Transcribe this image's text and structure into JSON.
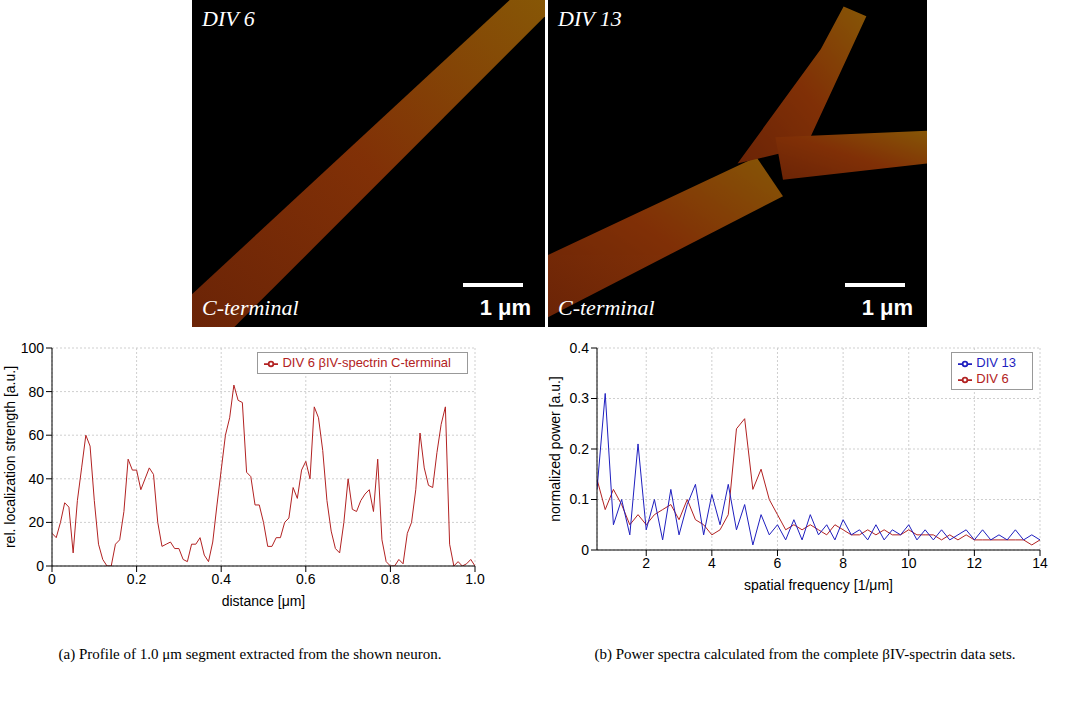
{
  "panels": [
    {
      "title": "DIV 6",
      "label": "C-terminal",
      "scale_bar": "1 μm"
    },
    {
      "title": "DIV 13",
      "label": "C-terminal",
      "scale_bar": "1 μm"
    }
  ],
  "chart_data": [
    {
      "type": "line",
      "caption": "(a) Profile of 1.0 μm segment extracted from the shown neuron.",
      "x_label": "distance [μm]",
      "y_label": "rel. localization strength [a.u.]",
      "xlim": [
        0,
        1
      ],
      "xticks": [
        0,
        0.2,
        0.4,
        0.6,
        0.8,
        {
          "value": 1,
          "label": "1.0"
        }
      ],
      "ylim": [
        0,
        100
      ],
      "yticks": [
        0,
        20,
        40,
        60,
        80,
        100
      ],
      "grid": true,
      "legend": "upper right",
      "x": [
        0,
        0.01,
        0.02,
        0.03,
        0.04,
        0.05,
        0.06,
        0.07,
        0.08,
        0.09,
        0.1,
        0.11,
        0.12,
        0.13,
        0.14,
        0.15,
        0.16,
        0.17,
        0.18,
        0.19,
        0.2,
        0.21,
        0.22,
        0.23,
        0.24,
        0.25,
        0.26,
        0.27,
        0.28,
        0.29,
        0.3,
        0.31,
        0.32,
        0.33,
        0.34,
        0.35,
        0.36,
        0.37,
        0.38,
        0.39,
        0.4,
        0.41,
        0.42,
        0.43,
        0.44,
        0.45,
        0.46,
        0.47,
        0.48,
        0.49,
        0.5,
        0.51,
        0.52,
        0.53,
        0.54,
        0.55,
        0.56,
        0.57,
        0.58,
        0.59,
        0.6,
        0.61,
        0.62,
        0.63,
        0.64,
        0.65,
        0.66,
        0.67,
        0.68,
        0.69,
        0.7,
        0.71,
        0.72,
        0.73,
        0.74,
        0.75,
        0.76,
        0.77,
        0.78,
        0.79,
        0.8,
        0.81,
        0.82,
        0.83,
        0.84,
        0.85,
        0.86,
        0.87,
        0.88,
        0.89,
        0.9,
        0.91,
        0.92,
        0.93,
        0.94,
        0.95,
        0.96,
        0.97,
        0.98,
        0.99,
        1
      ],
      "series": [
        {
          "name": "DIV 6 βIV-spectrin C-terminal",
          "color": "#b22222",
          "values": [
            15,
            13,
            20,
            29,
            27,
            6,
            30,
            45,
            60,
            55,
            30,
            10,
            3,
            0,
            0,
            10,
            12,
            25,
            49,
            44,
            44,
            35,
            40,
            45,
            42,
            20,
            9,
            10,
            11,
            8,
            8,
            3,
            2,
            10,
            10,
            13,
            5,
            2,
            11,
            28,
            44,
            60,
            68,
            83,
            76,
            75,
            43,
            41,
            28,
            28,
            20,
            9,
            9,
            13,
            13,
            20,
            22,
            36,
            31,
            44,
            48,
            40,
            73,
            68,
            53,
            30,
            16,
            8,
            6,
            20,
            40,
            26,
            25,
            30,
            33,
            35,
            25,
            49,
            12,
            2,
            0,
            0,
            3,
            1,
            15,
            20,
            35,
            61,
            45,
            37,
            36,
            52,
            65,
            73,
            10,
            0,
            2,
            0,
            1,
            3,
            0
          ]
        }
      ]
    },
    {
      "type": "line",
      "caption": "(b) Power spectra calculated from the complete βIV-spectrin data sets.",
      "x_label": "spatial frequency [1/μm]",
      "y_label": "normalized power [a.u.]",
      "xlim": [
        0.5,
        14
      ],
      "xticks": [
        2,
        4,
        6,
        8,
        10,
        12,
        14
      ],
      "ylim": [
        0,
        0.4
      ],
      "yticks": [
        0,
        0.1,
        0.2,
        0.3,
        0.4
      ],
      "grid": true,
      "legend": "upper right",
      "x": [
        0.5,
        0.75,
        1,
        1.25,
        1.5,
        1.75,
        2,
        2.25,
        2.5,
        2.75,
        3,
        3.25,
        3.5,
        3.75,
        4,
        4.25,
        4.5,
        4.75,
        5,
        5.25,
        5.5,
        5.75,
        6,
        6.25,
        6.5,
        6.75,
        7,
        7.25,
        7.5,
        7.75,
        8,
        8.25,
        8.5,
        8.75,
        9,
        9.25,
        9.5,
        9.75,
        10,
        10.25,
        10.5,
        10.75,
        11,
        11.25,
        11.5,
        11.75,
        12,
        12.25,
        12.5,
        12.75,
        13,
        13.25,
        13.5,
        13.75,
        14
      ],
      "series": [
        {
          "name": "DIV 6",
          "color": "#b22222",
          "values": [
            0.14,
            0.08,
            0.12,
            0.09,
            0.05,
            0.07,
            0.05,
            0.07,
            0.08,
            0.09,
            0.06,
            0.1,
            0.06,
            0.05,
            0.03,
            0.04,
            0.07,
            0.24,
            0.26,
            0.12,
            0.16,
            0.1,
            0.07,
            0.04,
            0.05,
            0.04,
            0.05,
            0.04,
            0.03,
            0.05,
            0.04,
            0.03,
            0.03,
            0.04,
            0.03,
            0.04,
            0.03,
            0.03,
            0.04,
            0.03,
            0.03,
            0.03,
            0.02,
            0.03,
            0.02,
            0.03,
            0.02,
            0.02,
            0.02,
            0.02,
            0.02,
            0.02,
            0.02,
            0.01,
            0.02
          ]
        },
        {
          "name": "DIV 13",
          "color": "#1f1fbf",
          "values": [
            0.12,
            0.31,
            0.05,
            0.1,
            0.03,
            0.21,
            0.04,
            0.1,
            0.02,
            0.12,
            0.03,
            0.09,
            0.13,
            0.03,
            0.11,
            0.05,
            0.13,
            0.04,
            0.09,
            0.01,
            0.07,
            0.03,
            0.05,
            0.02,
            0.06,
            0.02,
            0.07,
            0.03,
            0.05,
            0.02,
            0.06,
            0.03,
            0.04,
            0.02,
            0.05,
            0.02,
            0.04,
            0.03,
            0.05,
            0.02,
            0.04,
            0.02,
            0.04,
            0.02,
            0.03,
            0.04,
            0.02,
            0.04,
            0.02,
            0.03,
            0.02,
            0.04,
            0.02,
            0.03,
            0.02
          ]
        }
      ]
    }
  ]
}
